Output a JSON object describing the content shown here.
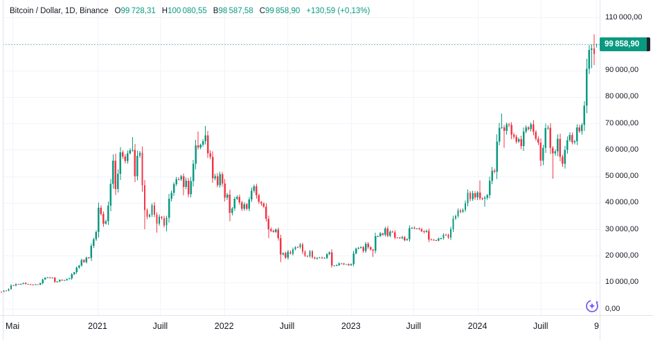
{
  "header": {
    "symbol": "Bitcoin / Dollar, 1D, Binance",
    "ohlc": [
      {
        "label": "O",
        "value": "99 728,31"
      },
      {
        "label": "H",
        "value": "100 080,55"
      },
      {
        "label": "B",
        "value": "98 587,58"
      },
      {
        "label": "C",
        "value": "99 858,90"
      }
    ],
    "change": "+130,59 (+0,13%)"
  },
  "price_scale": {
    "last_price_label": "99 858,90"
  },
  "colors": {
    "up": "#089981",
    "down": "#f23645",
    "text": "#131722",
    "grid": "#f0f3fa",
    "separator": "#e0e3eb",
    "badge_bg": "#089981",
    "badge_tab": "#1e222d",
    "accent_purple": "#7a5cf5",
    "background": "#ffffff"
  },
  "icons": {
    "bottom_right_button": "sparkle-circle-icon"
  },
  "chart_data": {
    "type": "candlestick",
    "title": "Bitcoin / Dollar, 1D, Binance",
    "xlabel": "",
    "ylabel": "",
    "ylim": [
      0,
      110000
    ],
    "grid": true,
    "legend_position": "none",
    "x_week0_date": "2020-03-30",
    "x_unit": "week",
    "current_price": 99858.9,
    "last_candle": {
      "open": 99728.31,
      "high": 100080.55,
      "low": 98587.58,
      "close": 99858.9
    },
    "y_ticks": [
      {
        "value": 0,
        "label": "0,00"
      },
      {
        "value": 10000,
        "label": "10 000,00"
      },
      {
        "value": 20000,
        "label": "20 000,00"
      },
      {
        "value": 30000,
        "label": "30 000,00"
      },
      {
        "value": 40000,
        "label": "40 000,00"
      },
      {
        "value": 50000,
        "label": "50 000,00"
      },
      {
        "value": 60000,
        "label": "60 000,00"
      },
      {
        "value": 70000,
        "label": "70 000,00"
      },
      {
        "value": 80000,
        "label": "80 000,00"
      },
      {
        "value": 90000,
        "label": "90 000,00"
      },
      {
        "value": 100000,
        "label": "100 000,00"
      },
      {
        "value": 110000,
        "label": "110 000,00"
      }
    ],
    "x_ticks": [
      {
        "label": "Mai",
        "week": 4.6
      },
      {
        "label": "2021",
        "week": 39.6
      },
      {
        "label": "Juill",
        "week": 65.4
      },
      {
        "label": "2022",
        "week": 91.7
      },
      {
        "label": "Juill",
        "week": 117.6
      },
      {
        "label": "2023",
        "week": 143.9
      },
      {
        "label": "Juill",
        "week": 169.7
      },
      {
        "label": "2024",
        "week": 196.0
      },
      {
        "label": "Juill",
        "week": 222.0
      },
      {
        "label": "9",
        "week": 245.0
      }
    ],
    "weekly_closes_usd": [
      6400,
      6900,
      6850,
      7500,
      8900,
      8750,
      9350,
      9200,
      9450,
      9750,
      9350,
      9300,
      9150,
      9100,
      9250,
      9150,
      9700,
      11050,
      11700,
      11900,
      11650,
      11700,
      10150,
      10350,
      10950,
      10700,
      10800,
      11300,
      11500,
      13050,
      13800,
      15500,
      16350,
      18400,
      17700,
      19350,
      19150,
      23800,
      26250,
      29000,
      38200,
      35800,
      32100,
      33100,
      38900,
      47200,
      55900,
      45200,
      50900,
      59000,
      57500,
      55800,
      58700,
      59800,
      60000,
      50100,
      57800,
      58900,
      46700,
      37300,
      34700,
      35500,
      39000,
      35500,
      32200,
      34700,
      34200,
      31500,
      34300,
      41500,
      43800,
      47000,
      48900,
      48800,
      50000,
      46000,
      48300,
      43200,
      48200,
      54700,
      61700,
      60900,
      61900,
      63300,
      65500,
      58700,
      57300,
      49200,
      50100,
      46700,
      50800,
      47300,
      41900,
      43100,
      36200,
      37900,
      41500,
      42200,
      40100,
      37700,
      39400,
      37800,
      41300,
      44500,
      46300,
      42800,
      40400,
      39700,
      38600,
      34000,
      30100,
      29400,
      29000,
      29900,
      26600,
      20500,
      21000,
      19300,
      21600,
      20800,
      22500,
      23300,
      23200,
      24300,
      21500,
      20000,
      19800,
      21700,
      19500,
      18900,
      19300,
      19400,
      19100,
      19200,
      20600,
      21300,
      16300,
      16300,
      16500,
      17100,
      17100,
      16800,
      16800,
      16500,
      16900,
      20900,
      22700,
      23000,
      23300,
      21800,
      24600,
      23200,
      22400,
      22000,
      27400,
      27500,
      28500,
      28000,
      30300,
      27600,
      29200,
      28900,
      26900,
      26800,
      26700,
      27100,
      25900,
      26300,
      30500,
      30600,
      30300,
      30300,
      30000,
      29300,
      29000,
      29400,
      26100,
      26000,
      25900,
      25800,
      26500,
      26600,
      28000,
      27900,
      26900,
      30000,
      34100,
      35000,
      37100,
      36600,
      37400,
      39900,
      43800,
      41400,
      43700,
      42100,
      43900,
      41700,
      41600,
      42000,
      42900,
      48300,
      52100,
      51700,
      63100,
      68300,
      68400,
      67200,
      69600,
      69400,
      65700,
      64900,
      63100,
      64000,
      61400,
      66900,
      68500,
      67800,
      69600,
      66700,
      64200,
      62700,
      55900,
      60800,
      68200,
      68300,
      60700,
      58700,
      59500,
      64200,
      57300,
      54800,
      60000,
      63600,
      65600,
      62800,
      63200,
      68400,
      67000,
      69400,
      76700,
      90600,
      97700,
      98200,
      96200,
      99858.9
    ],
    "wick_overrides": {
      "54": {
        "high": 64800
      },
      "59": {
        "low": 30000
      },
      "64": {
        "low": 28800
      },
      "68": {
        "low": 29300
      },
      "75": {
        "low": 42900
      },
      "81": {
        "high": 66900
      },
      "84": {
        "high": 69000
      },
      "94": {
        "low": 33000
      },
      "110": {
        "low": 26700
      },
      "115": {
        "low": 17600
      },
      "136": {
        "low": 15500
      },
      "153": {
        "low": 19600
      },
      "197": {
        "high": 48500
      },
      "199": {
        "low": 38500
      },
      "206": {
        "high": 73700
      },
      "207": {
        "low": 60800
      },
      "227": {
        "low": 49100
      },
      "242": {
        "high": 99600
      },
      "243": {
        "low": 90800
      },
      "244": {
        "high": 103600,
        "low": 92000
      }
    }
  }
}
